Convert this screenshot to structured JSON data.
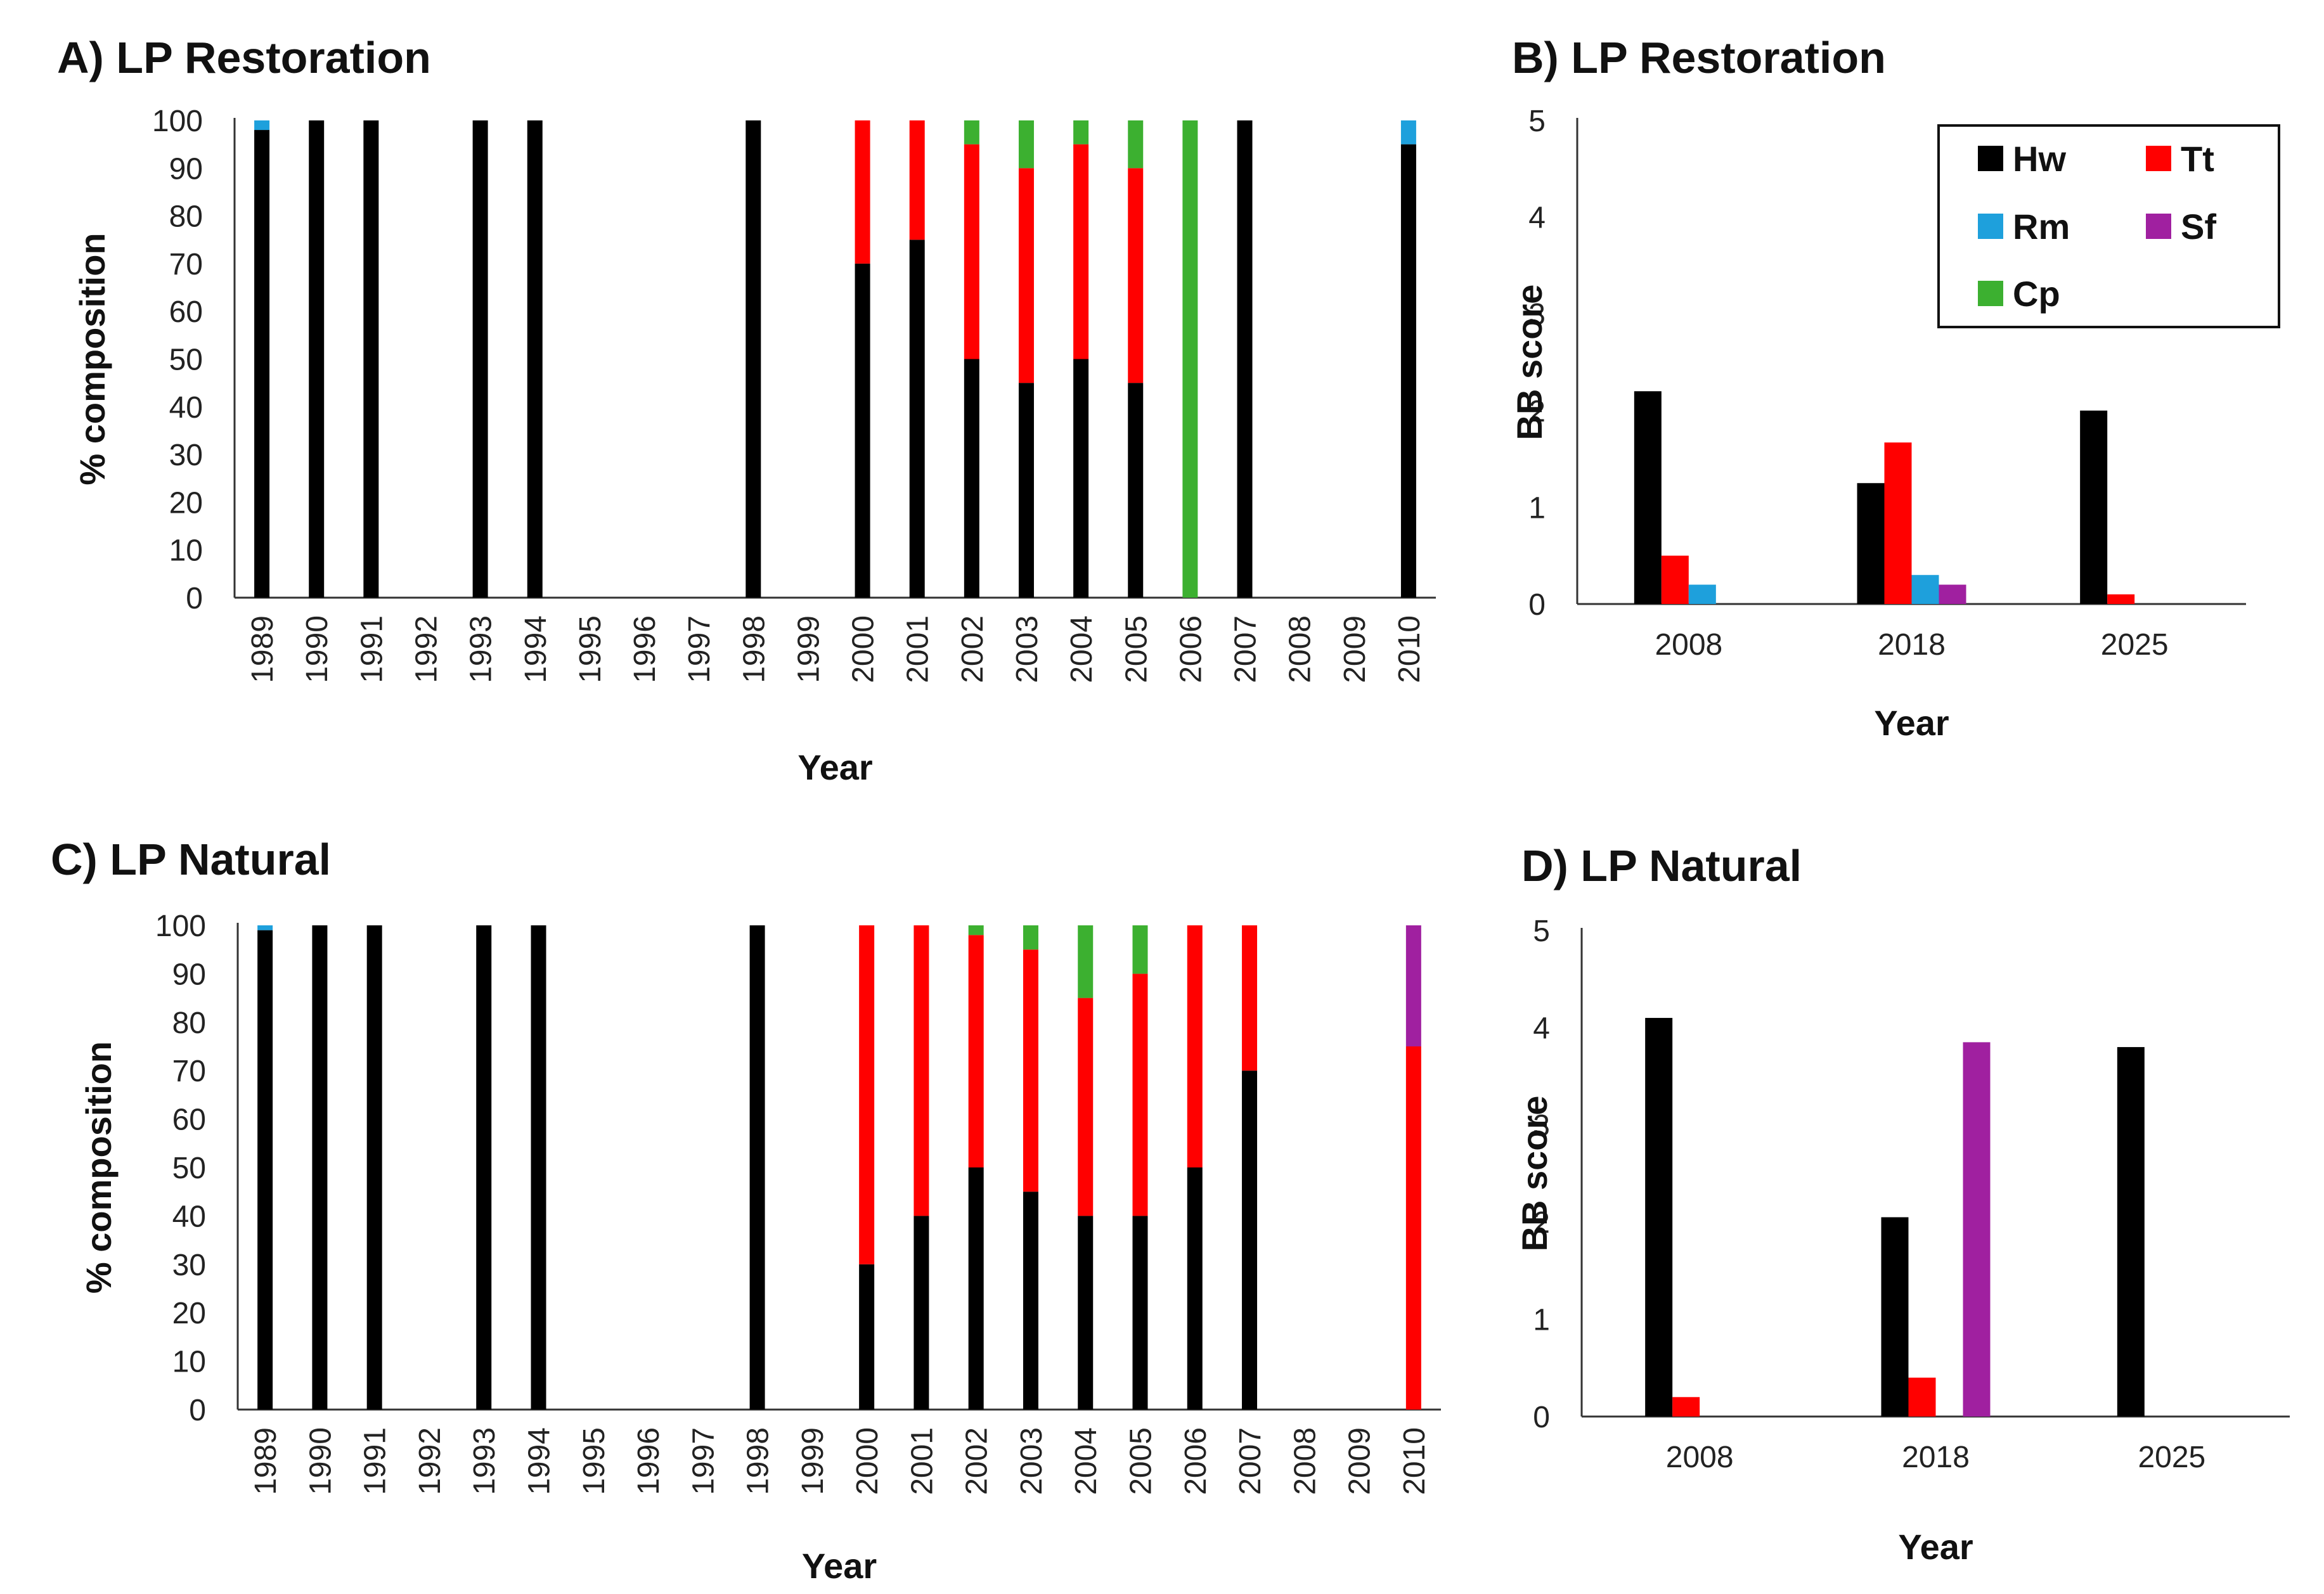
{
  "colors": {
    "Hw": "#000000",
    "Tt": "#ff0000",
    "Rm": "#1ea0dc",
    "Sf": "#a020a0",
    "Cp": "#3cb030"
  },
  "legend": [
    {
      "key": "Hw",
      "label": "Hw"
    },
    {
      "key": "Tt",
      "label": "Tt"
    },
    {
      "key": "Rm",
      "label": "Rm"
    },
    {
      "key": "Sf",
      "label": "Sf"
    },
    {
      "key": "Cp",
      "label": "Cp"
    }
  ],
  "chart_data": [
    {
      "id": "A",
      "type": "bar",
      "stacked": true,
      "title": "A) LP Restoration",
      "xlabel": "Year",
      "ylabel": "% composition",
      "ylim": [
        0,
        100
      ],
      "yticks": [
        0,
        10,
        20,
        30,
        40,
        50,
        60,
        70,
        80,
        90,
        100
      ],
      "categories": [
        "1989",
        "1990",
        "1991",
        "1992",
        "1993",
        "1994",
        "1995",
        "1996",
        "1997",
        "1998",
        "1999",
        "2000",
        "2001",
        "2002",
        "2003",
        "2004",
        "2005",
        "2006",
        "2007",
        "2008",
        "2009",
        "2010"
      ],
      "series": [
        {
          "name": "Hw",
          "values": [
            98,
            100,
            100,
            0,
            100,
            100,
            0,
            0,
            0,
            100,
            0,
            70,
            75,
            50,
            45,
            50,
            45,
            0,
            100,
            0,
            0,
            95
          ]
        },
        {
          "name": "Tt",
          "values": [
            0,
            0,
            0,
            0,
            0,
            0,
            0,
            0,
            0,
            0,
            0,
            30,
            25,
            45,
            45,
            45,
            45,
            0,
            0,
            0,
            0,
            0
          ]
        },
        {
          "name": "Cp",
          "values": [
            0,
            0,
            0,
            0,
            0,
            0,
            0,
            0,
            0,
            0,
            0,
            0,
            0,
            5,
            10,
            5,
            10,
            100,
            0,
            0,
            0,
            0
          ]
        },
        {
          "name": "Rm",
          "values": [
            2,
            0,
            0,
            0,
            0,
            0,
            0,
            0,
            0,
            0,
            0,
            0,
            0,
            0,
            0,
            0,
            0,
            0,
            0,
            0,
            0,
            5
          ]
        },
        {
          "name": "Sf",
          "values": [
            0,
            0,
            0,
            0,
            0,
            0,
            0,
            0,
            0,
            0,
            0,
            0,
            0,
            0,
            0,
            0,
            0,
            0,
            0,
            0,
            0,
            0
          ]
        }
      ]
    },
    {
      "id": "B",
      "type": "bar",
      "stacked": false,
      "title": "B) LP Restoration",
      "xlabel": "Year",
      "ylabel": "BB score",
      "ylim": [
        0,
        5
      ],
      "yticks": [
        0,
        1,
        2,
        3,
        4,
        5
      ],
      "categories": [
        "2008",
        "2018",
        "2025"
      ],
      "series": [
        {
          "name": "Hw",
          "values": [
            2.2,
            1.25,
            2.0
          ]
        },
        {
          "name": "Tt",
          "values": [
            0.5,
            1.67,
            0.1
          ]
        },
        {
          "name": "Rm",
          "values": [
            0.2,
            0.3,
            0
          ]
        },
        {
          "name": "Sf",
          "values": [
            0,
            0.2,
            0
          ]
        },
        {
          "name": "Cp",
          "values": [
            0,
            0,
            0
          ]
        }
      ],
      "legend_position": "top-right"
    },
    {
      "id": "C",
      "type": "bar",
      "stacked": true,
      "title": "C) LP Natural",
      "xlabel": "Year",
      "ylabel": "% composition",
      "ylim": [
        0,
        100
      ],
      "yticks": [
        0,
        10,
        20,
        30,
        40,
        50,
        60,
        70,
        80,
        90,
        100
      ],
      "categories": [
        "1989",
        "1990",
        "1991",
        "1992",
        "1993",
        "1994",
        "1995",
        "1996",
        "1997",
        "1998",
        "1999",
        "2000",
        "2001",
        "2002",
        "2003",
        "2004",
        "2005",
        "2006",
        "2007",
        "2008",
        "2009",
        "2010"
      ],
      "series": [
        {
          "name": "Hw",
          "values": [
            99,
            100,
            100,
            0,
            100,
            100,
            0,
            0,
            0,
            100,
            0,
            30,
            40,
            50,
            45,
            40,
            40,
            50,
            70,
            0,
            0,
            0
          ]
        },
        {
          "name": "Tt",
          "values": [
            0,
            0,
            0,
            0,
            0,
            0,
            0,
            0,
            0,
            0,
            0,
            70,
            60,
            48,
            50,
            45,
            50,
            50,
            30,
            0,
            0,
            75
          ]
        },
        {
          "name": "Cp",
          "values": [
            0,
            0,
            0,
            0,
            0,
            0,
            0,
            0,
            0,
            0,
            0,
            0,
            0,
            2,
            5,
            15,
            10,
            0,
            0,
            0,
            0,
            0
          ]
        },
        {
          "name": "Rm",
          "values": [
            1,
            0,
            0,
            0,
            0,
            0,
            0,
            0,
            0,
            0,
            0,
            0,
            0,
            0,
            0,
            0,
            0,
            0,
            0,
            0,
            0,
            0
          ]
        },
        {
          "name": "Sf",
          "values": [
            0,
            0,
            0,
            0,
            0,
            0,
            0,
            0,
            0,
            0,
            0,
            0,
            0,
            0,
            0,
            0,
            0,
            0,
            0,
            0,
            0,
            25
          ]
        }
      ]
    },
    {
      "id": "D",
      "type": "bar",
      "stacked": false,
      "title": "D) LP Natural",
      "xlabel": "Year",
      "ylabel": "BB score",
      "ylim": [
        0,
        5
      ],
      "yticks": [
        0,
        1,
        2,
        3,
        4,
        5
      ],
      "categories": [
        "2008",
        "2018",
        "2025"
      ],
      "series": [
        {
          "name": "Hw",
          "values": [
            4.1,
            2.05,
            3.8
          ]
        },
        {
          "name": "Tt",
          "values": [
            0.2,
            0.4,
            0
          ]
        },
        {
          "name": "Rm",
          "values": [
            0,
            0,
            0
          ]
        },
        {
          "name": "Sf",
          "values": [
            0,
            3.85,
            0
          ]
        },
        {
          "name": "Cp",
          "values": [
            0,
            0,
            0
          ]
        }
      ]
    }
  ]
}
